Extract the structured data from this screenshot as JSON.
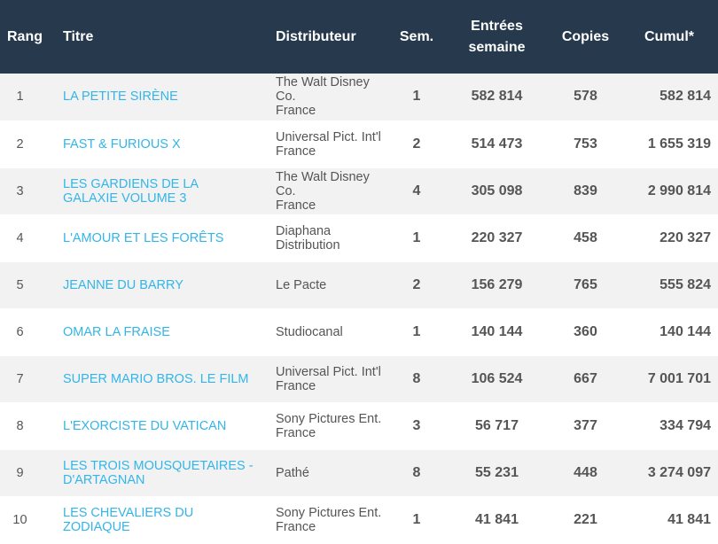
{
  "headers": {
    "rang": "Rang",
    "titre": "Titre",
    "distributeur": "Distributeur",
    "sem": "Sem.",
    "entrees_line1": "Entrées",
    "entrees_line2": "semaine",
    "copies": "Copies",
    "cumul": "Cumul*"
  },
  "rows": [
    {
      "rang": "1",
      "titre": "LA PETITE SIRÈNE",
      "dist1": "The Walt Disney Co.",
      "dist2": "France",
      "sem": "1",
      "entrees": "582 814",
      "copies": "578",
      "cumul": "582 814"
    },
    {
      "rang": "2",
      "titre": "FAST & FURIOUS X",
      "dist1": "Universal Pict. Int'l",
      "dist2": "France",
      "sem": "2",
      "entrees": "514 473",
      "copies": "753",
      "cumul": "1 655 319"
    },
    {
      "rang": "3",
      "titre1": "LES GARDIENS DE LA",
      "titre2": "GALAXIE VOLUME 3",
      "dist1": "The Walt Disney Co.",
      "dist2": "France",
      "sem": "4",
      "entrees": "305 098",
      "copies": "839",
      "cumul": "2 990 814"
    },
    {
      "rang": "4",
      "titre": "L'AMOUR ET LES FORÊTS",
      "dist1": "Diaphana",
      "dist2": "Distribution",
      "sem": "1",
      "entrees": "220 327",
      "copies": "458",
      "cumul": "220 327"
    },
    {
      "rang": "5",
      "titre": "JEANNE DU BARRY",
      "dist1": "Le Pacte",
      "sem": "2",
      "entrees": "156 279",
      "copies": "765",
      "cumul": "555 824"
    },
    {
      "rang": "6",
      "titre": "OMAR LA FRAISE",
      "dist1": "Studiocanal",
      "sem": "1",
      "entrees": "140 144",
      "copies": "360",
      "cumul": "140 144"
    },
    {
      "rang": "7",
      "titre": "SUPER MARIO BROS. LE FILM",
      "dist1": "Universal Pict. Int'l",
      "dist2": "France",
      "sem": "8",
      "entrees": "106 524",
      "copies": "667",
      "cumul": "7 001 701"
    },
    {
      "rang": "8",
      "titre": "L'EXORCISTE DU VATICAN",
      "dist1": "Sony Pictures Ent.",
      "dist2": "France",
      "sem": "3",
      "entrees": "56 717",
      "copies": "377",
      "cumul": "334 794"
    },
    {
      "rang": "9",
      "titre1": "LES TROIS MOUSQUETAIRES -",
      "titre2": "D'ARTAGNAN",
      "dist1": "Pathé",
      "sem": "8",
      "entrees": "55 231",
      "copies": "448",
      "cumul": "3 274 097"
    },
    {
      "rang": "10",
      "titre1": "LES CHEVALIERS DU",
      "titre2": "ZODIAQUE",
      "dist1": "Sony Pictures Ent.",
      "dist2": "France",
      "sem": "1",
      "entrees": "41 841",
      "copies": "221",
      "cumul": "41 841"
    }
  ]
}
